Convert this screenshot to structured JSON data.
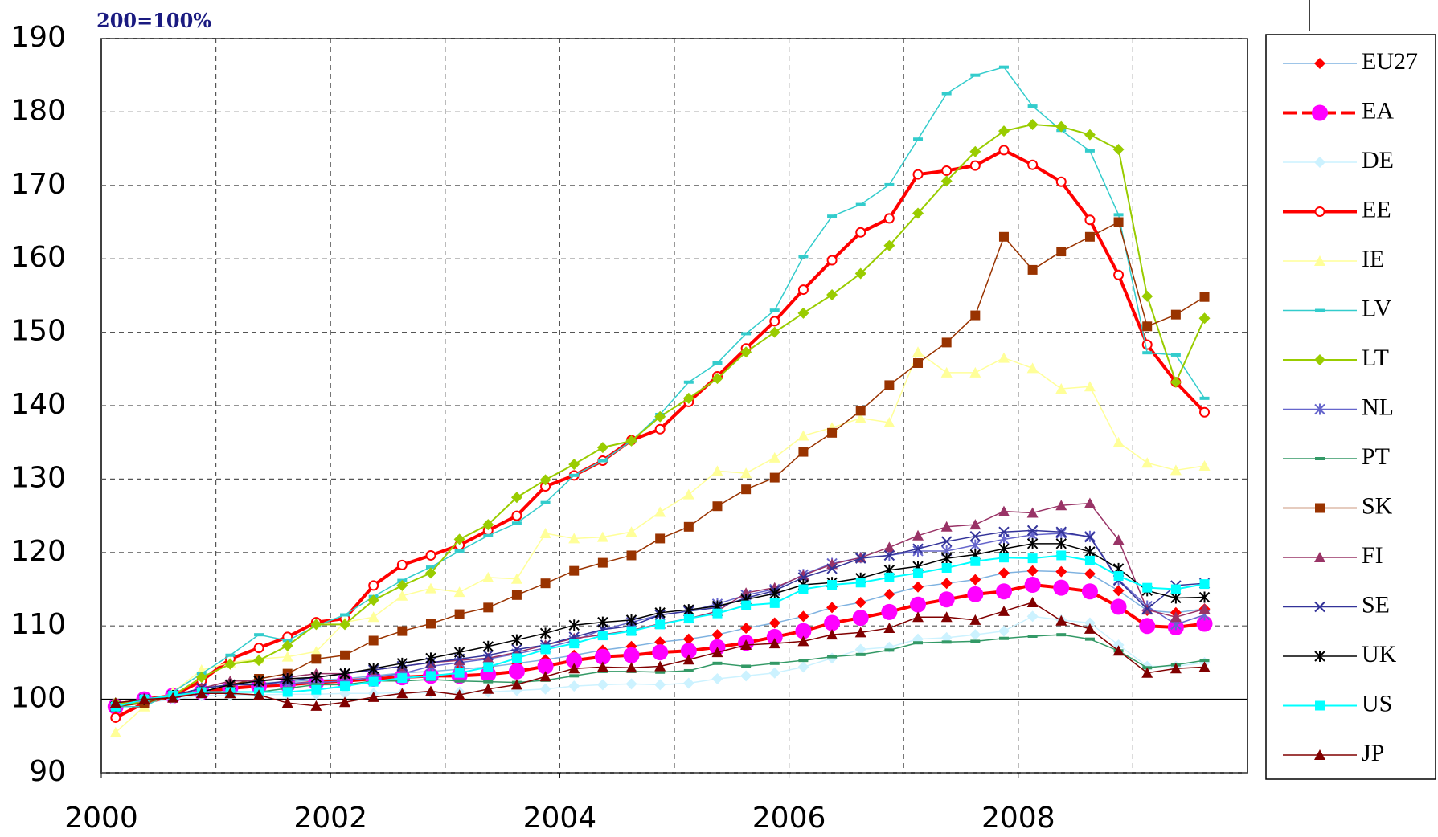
{
  "chart_data": {
    "type": "line",
    "subtitle": "200=100%",
    "x": [
      2000.125,
      2000.375,
      2000.625,
      2000.875,
      2001.125,
      2001.375,
      2001.625,
      2001.875,
      2002.125,
      2002.375,
      2002.625,
      2002.875,
      2003.125,
      2003.375,
      2003.625,
      2003.875,
      2004.125,
      2004.375,
      2004.625,
      2004.875,
      2005.125,
      2005.375,
      2005.625,
      2005.875,
      2006.125,
      2006.375,
      2006.625,
      2006.875,
      2007.125,
      2007.375,
      2007.625,
      2007.875,
      2008.125,
      2008.375,
      2008.625,
      2008.875,
      2009.125,
      2009.375,
      2009.625
    ],
    "xlim": [
      2000,
      2010
    ],
    "xticks": [
      2000,
      2002,
      2004,
      2006,
      2008
    ],
    "xgrid": [
      2001,
      2002,
      2003,
      2004,
      2005,
      2006,
      2007,
      2008,
      2009
    ],
    "ylim": [
      90,
      190
    ],
    "yticks": [
      90,
      100,
      110,
      120,
      130,
      140,
      150,
      160,
      170,
      180,
      190
    ],
    "baseline": 100,
    "grid": true,
    "legend": "right",
    "series": [
      {
        "name": "EU27",
        "color": "#7fb2e0",
        "marker": "diamond",
        "marker_color": "#ff0000",
        "width": 1.5,
        "values": [
          99,
          100,
          100.5,
          101.5,
          102,
          102.2,
          102.4,
          102.6,
          102.8,
          103.2,
          103.6,
          103.8,
          104.1,
          104.4,
          104.9,
          105.4,
          106,
          106.7,
          107.2,
          107.8,
          108.2,
          108.8,
          109.7,
          110.4,
          111.3,
          112.5,
          113.2,
          114.3,
          115.3,
          115.8,
          116.3,
          117.2,
          117.5,
          117.4,
          117.1,
          114.8,
          112.1,
          111.8,
          112.3
        ]
      },
      {
        "name": "EA",
        "color": "#ff0000",
        "marker": "circle",
        "marker_color": "#ff00ff",
        "width": 4,
        "dashed": true,
        "values": [
          99,
          100,
          100.5,
          101,
          101.5,
          101.8,
          102,
          102.3,
          102.5,
          102.8,
          103,
          103.2,
          103.2,
          103.4,
          103.8,
          104.5,
          105.3,
          105.8,
          106,
          106.4,
          106.6,
          107.1,
          107.7,
          108.5,
          109.3,
          110.4,
          111.1,
          111.9,
          112.9,
          113.6,
          114.3,
          114.7,
          115.6,
          115.2,
          114.7,
          112.6,
          110,
          109.8,
          110.3
        ]
      },
      {
        "name": "DE",
        "color": "#ccf2ff",
        "marker": "diamond",
        "marker_color": "#ccf2ff",
        "width": 1.5,
        "values": [
          99,
          99.5,
          100,
          100.5,
          100.5,
          100.6,
          100.7,
          100.7,
          100.8,
          100.8,
          100.9,
          100.9,
          101,
          101,
          101.2,
          101.4,
          101.8,
          102,
          102.1,
          102,
          102.2,
          102.8,
          103.2,
          103.6,
          104.4,
          105.6,
          106.8,
          107.1,
          108.2,
          108.4,
          108.8,
          109.3,
          111.3,
          110.8,
          110.4,
          107.4,
          104.5,
          104.5,
          105
        ]
      },
      {
        "name": "EE",
        "color": "#ff0000",
        "marker": "open-circle",
        "marker_color": "#ff0000",
        "width": 4,
        "values": [
          97.5,
          99.5,
          100.5,
          102.5,
          105.5,
          107,
          108.5,
          110.5,
          111,
          115.5,
          118.3,
          119.6,
          121,
          123,
          125,
          129,
          130.5,
          132.5,
          135.3,
          136.8,
          140.5,
          144,
          147.8,
          151.5,
          155.8,
          159.8,
          163.6,
          165.5,
          171.5,
          172,
          172.7,
          174.8,
          172.8,
          170.5,
          165.3,
          157.8,
          148.3,
          143.2,
          139.1
        ]
      },
      {
        "name": "IE",
        "color": "#ffff99",
        "marker": "triangle",
        "marker_color": "#ffff99",
        "width": 1.5,
        "values": [
          95.5,
          99,
          101,
          104,
          105,
          105.5,
          105.8,
          106.5,
          110.5,
          111.2,
          114.1,
          115.1,
          114.6,
          116.6,
          116.4,
          122.6,
          121.9,
          122.1,
          122.8,
          125.5,
          127.9,
          131.1,
          130.8,
          132.9,
          135.9,
          137,
          138.3,
          137.7,
          147.3,
          144.5,
          144.5,
          146.5,
          145.1,
          142.3,
          142.6,
          135,
          132.2,
          131.2,
          131.8
        ]
      },
      {
        "name": "LV",
        "color": "#33cccc",
        "marker": "dash",
        "marker_color": "#33cccc",
        "width": 1.5,
        "values": [
          99,
          99,
          101,
          103.5,
          106,
          108.8,
          108,
          110,
          111.5,
          114,
          116.2,
          118,
          120.2,
          122.3,
          124,
          126.8,
          130.5,
          132.5,
          135.2,
          138.8,
          143.2,
          145.8,
          149.8,
          153,
          160.3,
          165.8,
          167.4,
          170.1,
          176.3,
          182.5,
          185,
          186.1,
          180.8,
          177.5,
          174.7,
          166,
          147.2,
          146.9,
          141
        ]
      },
      {
        "name": "LT",
        "color": "#99cc00",
        "marker": "diamond",
        "marker_color": "#99cc00",
        "width": 2,
        "values": [
          99.5,
          99.5,
          100.5,
          103,
          104.8,
          105.3,
          107.3,
          110.2,
          110.2,
          113.5,
          115.5,
          117.2,
          121.8,
          123.8,
          127.5,
          129.9,
          132,
          134.3,
          135.2,
          138.5,
          141,
          143.7,
          147.3,
          150,
          152.6,
          155.1,
          158,
          161.8,
          166.2,
          170.6,
          174.6,
          177.4,
          178.3,
          178,
          176.9,
          174.9,
          154.9,
          143.2,
          151.9
        ]
      },
      {
        "name": "NL",
        "color": "#6666cc",
        "marker": "asterisk",
        "marker_color": "#6666cc",
        "width": 1.5,
        "values": [
          99,
          100,
          100.5,
          101.5,
          102,
          102,
          102.2,
          102.3,
          102.5,
          103,
          103.5,
          104.5,
          105,
          105.5,
          106.2,
          107,
          108,
          109.5,
          110.5,
          111.5,
          112,
          113,
          114.2,
          115,
          117,
          118.5,
          119.3,
          119.6,
          120.2,
          120.2,
          121,
          121.8,
          122.4,
          122.6,
          122.2,
          116.3,
          112.7,
          110.2,
          111.5
        ]
      },
      {
        "name": "PT",
        "color": "#339966",
        "marker": "dash",
        "marker_color": "#339966",
        "width": 1.5,
        "values": [
          99,
          99.5,
          100.5,
          101,
          101,
          101,
          101.5,
          102,
          102,
          102.5,
          102.5,
          102.7,
          102.5,
          102.4,
          102.3,
          102.6,
          103.2,
          103.8,
          103.8,
          103.7,
          103.9,
          104.9,
          104.5,
          104.9,
          105.3,
          105.8,
          106.1,
          106.7,
          107.7,
          107.8,
          107.9,
          108.3,
          108.6,
          108.8,
          108.2,
          106.6,
          104.3,
          104.7,
          105.3
        ]
      },
      {
        "name": "SK",
        "color": "#993300",
        "marker": "square",
        "marker_color": "#993300",
        "width": 1.5,
        "values": [
          99,
          99.5,
          100.5,
          101,
          102,
          102.8,
          103.5,
          105.5,
          106,
          108,
          109.3,
          110.3,
          111.6,
          112.5,
          114.2,
          115.8,
          117.5,
          118.6,
          119.6,
          121.9,
          123.5,
          126.3,
          128.6,
          130.2,
          133.7,
          136.3,
          139.3,
          142.8,
          145.8,
          148.6,
          152.3,
          163,
          158.5,
          161,
          163,
          165,
          150.8,
          152.4,
          154.8
        ]
      },
      {
        "name": "FI",
        "color": "#993366",
        "marker": "triangle",
        "marker_color": "#993366",
        "width": 1.5,
        "values": [
          99.5,
          100,
          100.5,
          101.5,
          102.5,
          102.5,
          103,
          103.5,
          103.5,
          104,
          104.5,
          105,
          105.3,
          105.6,
          106.4,
          107.4,
          108.3,
          108.8,
          109.4,
          110.3,
          111,
          112,
          114.5,
          115.2,
          116.9,
          118.4,
          119.3,
          120.7,
          122.3,
          123.5,
          123.8,
          125.6,
          125.4,
          126.4,
          126.7,
          121.7,
          112.2,
          111.2,
          112.3
        ]
      },
      {
        "name": "SE",
        "color": "#333399",
        "marker": "x",
        "marker_color": "#333399",
        "width": 1.5,
        "values": [
          99,
          100,
          100.5,
          101.5,
          102,
          102,
          102.5,
          103,
          103.5,
          104,
          104.5,
          105,
          105.5,
          106,
          106.8,
          107.4,
          108.5,
          109.5,
          110,
          111.5,
          112,
          112.5,
          113.8,
          114.8,
          116.6,
          117.8,
          119.2,
          119.6,
          120.5,
          121.5,
          122.2,
          122.8,
          123,
          122.8,
          122.1,
          116.2,
          112.3,
          115.5,
          115.8
        ]
      },
      {
        "name": "UK",
        "color": "#000000",
        "marker": "asterisk",
        "marker_color": "#000000",
        "width": 1.5,
        "values": [
          99,
          100,
          100.5,
          101,
          102,
          102.5,
          102.8,
          103,
          103.5,
          104.2,
          104.9,
          105.6,
          106.4,
          107.2,
          108.1,
          109,
          110.1,
          110.5,
          110.8,
          111.8,
          112.2,
          112.7,
          113.6,
          114.4,
          115.6,
          115.9,
          116.5,
          117.6,
          118.1,
          119.2,
          119.7,
          120.5,
          121.2,
          121.2,
          120.1,
          117.8,
          114.8,
          113.8,
          113.9
        ]
      },
      {
        "name": "US",
        "color": "#00ffff",
        "marker": "square",
        "marker_color": "#00ffff",
        "width": 2,
        "values": [
          99,
          100,
          100.5,
          101,
          101,
          101,
          101,
          101.3,
          101.8,
          102.4,
          102.9,
          103.2,
          103.6,
          104.4,
          105.6,
          106.8,
          107.6,
          108.7,
          109.3,
          110.2,
          111,
          111.7,
          112.8,
          113.1,
          115,
          115.6,
          115.9,
          116.6,
          117.2,
          117.9,
          118.8,
          119.3,
          119.2,
          119.6,
          118.9,
          116.8,
          115.2,
          115,
          115.7
        ]
      },
      {
        "name": "JP",
        "color": "#800000",
        "marker": "triangle",
        "marker_color": "#800000",
        "width": 1.5,
        "values": [
          99.5,
          100,
          100.2,
          100.8,
          100.8,
          100.6,
          99.5,
          99.1,
          99.6,
          100.3,
          100.8,
          101.1,
          100.6,
          101.4,
          102,
          103.1,
          104.2,
          104.4,
          104.3,
          104.5,
          105.4,
          106.4,
          107.4,
          107.6,
          107.9,
          108.8,
          109.1,
          109.7,
          111.2,
          111.2,
          110.8,
          112,
          113.2,
          110.7,
          109.6,
          106.6,
          103.6,
          104.2,
          104.4
        ]
      }
    ]
  }
}
